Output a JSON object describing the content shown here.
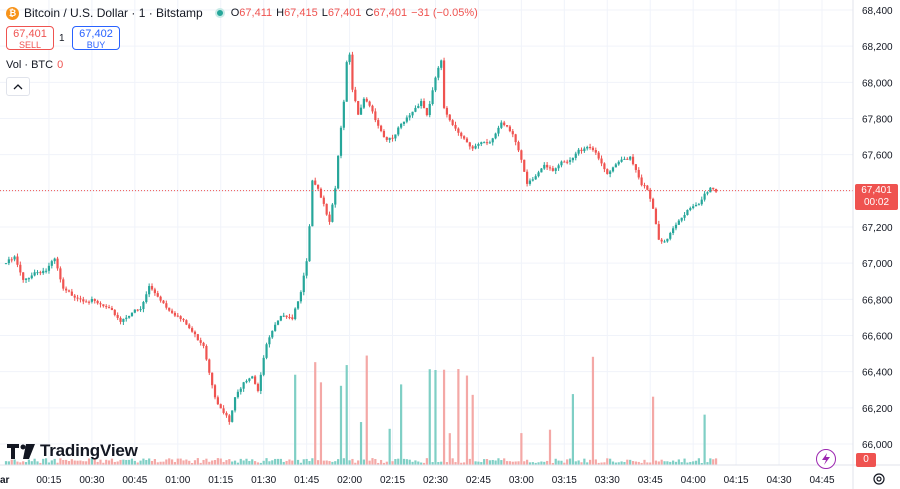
{
  "header": {
    "coin_icon_glyph": "₿",
    "symbol_title": "Bitcoin / U.S. Dollar · 1 · Bitstamp",
    "ohlc": {
      "open_key": "O",
      "open": "67,411",
      "high_key": "H",
      "high": "67,415",
      "low_key": "L",
      "low": "67,401",
      "close_key": "C",
      "close": "67,401",
      "change": "−31 (−0.05%)"
    }
  },
  "trade": {
    "sell_price": "67,401",
    "sell_label": "SELL",
    "spread": "1",
    "buy_price": "67,402",
    "buy_label": "BUY"
  },
  "volume": {
    "label": "Vol · BTC",
    "value": "0",
    "badge": "0"
  },
  "logo_text": "TradingView",
  "price_label": {
    "price": "67,401",
    "countdown": "00:02"
  },
  "colors": {
    "up": "#26a69a",
    "down": "#ef5350",
    "up_volume": "#7fcfc5",
    "down_volume": "#f4a8a6"
  },
  "icons": {
    "coin": "bitcoin-icon",
    "collapse": "chevron-up-icon",
    "logo": "tradingview-logo-icon",
    "bolt": "lightning-icon",
    "settings": "gear-icon"
  },
  "chart_data": {
    "type": "candlestick",
    "timeframe": "1 minute",
    "y_range": [
      65900,
      68450
    ],
    "y_ticks": [
      "68,400",
      "68,200",
      "68,000",
      "67,800",
      "67,600",
      "67,400",
      "67,200",
      "67,000",
      "66,800",
      "66,600",
      "66,400",
      "66,200",
      "66,000"
    ],
    "y_tick_values": [
      68400,
      68200,
      68000,
      67800,
      67600,
      67400,
      67200,
      67000,
      66800,
      66600,
      66400,
      66200,
      66000
    ],
    "x_ticks": [
      "ar",
      "00:15",
      "00:30",
      "00:45",
      "01:00",
      "01:15",
      "01:30",
      "01:45",
      "02:00",
      "02:15",
      "02:30",
      "02:45",
      "03:00",
      "03:15",
      "03:30",
      "03:45",
      "04:00",
      "04:15",
      "04:30",
      "04:45"
    ],
    "x_tick_minutes": [
      0,
      15,
      30,
      45,
      60,
      75,
      90,
      105,
      120,
      135,
      150,
      165,
      180,
      195,
      210,
      225,
      240,
      255,
      270,
      285
    ],
    "last_price_line": 67401,
    "close_path_anchors": [
      [
        0,
        67000
      ],
      [
        3,
        67030
      ],
      [
        6,
        66900
      ],
      [
        10,
        66950
      ],
      [
        14,
        66960
      ],
      [
        17,
        67020
      ],
      [
        20,
        66850
      ],
      [
        24,
        66820
      ],
      [
        27,
        66800
      ],
      [
        30,
        66790
      ],
      [
        34,
        66760
      ],
      [
        38,
        66720
      ],
      [
        40,
        66680
      ],
      [
        44,
        66730
      ],
      [
        47,
        66740
      ],
      [
        50,
        66870
      ],
      [
        53,
        66820
      ],
      [
        56,
        66760
      ],
      [
        59,
        66720
      ],
      [
        63,
        66660
      ],
      [
        66,
        66600
      ],
      [
        69,
        66550
      ],
      [
        71,
        66400
      ],
      [
        73,
        66270
      ],
      [
        75,
        66190
      ],
      [
        77,
        66150
      ],
      [
        78,
        66120
      ],
      [
        80,
        66250
      ],
      [
        83,
        66350
      ],
      [
        86,
        66380
      ],
      [
        88,
        66300
      ],
      [
        91,
        66550
      ],
      [
        94,
        66650
      ],
      [
        97,
        66720
      ],
      [
        100,
        66700
      ],
      [
        103,
        66850
      ],
      [
        105,
        67000
      ],
      [
        106,
        67200
      ],
      [
        107,
        67450
      ],
      [
        109,
        67400
      ],
      [
        111,
        67320
      ],
      [
        113,
        67240
      ],
      [
        115,
        67420
      ],
      [
        116,
        67600
      ],
      [
        118,
        67900
      ],
      [
        119,
        68100
      ],
      [
        120,
        68150
      ],
      [
        121,
        67950
      ],
      [
        123,
        67820
      ],
      [
        125,
        67900
      ],
      [
        127,
        67880
      ],
      [
        129,
        67800
      ],
      [
        132,
        67700
      ],
      [
        135,
        67680
      ],
      [
        137,
        67740
      ],
      [
        139,
        67780
      ],
      [
        142,
        67840
      ],
      [
        145,
        67900
      ],
      [
        147,
        67820
      ],
      [
        149,
        67950
      ],
      [
        151,
        68080
      ],
      [
        152,
        68120
      ],
      [
        153,
        67850
      ],
      [
        155,
        67780
      ],
      [
        157,
        67750
      ],
      [
        160,
        67690
      ],
      [
        163,
        67640
      ],
      [
        166,
        67660
      ],
      [
        169,
        67660
      ],
      [
        171,
        67720
      ],
      [
        173,
        67780
      ],
      [
        175,
        67760
      ],
      [
        177,
        67720
      ],
      [
        179,
        67620
      ],
      [
        181,
        67500
      ],
      [
        182,
        67430
      ],
      [
        185,
        67480
      ],
      [
        188,
        67550
      ],
      [
        191,
        67520
      ],
      [
        194,
        67550
      ],
      [
        197,
        67560
      ],
      [
        200,
        67620
      ],
      [
        203,
        67650
      ],
      [
        206,
        67620
      ],
      [
        208,
        67540
      ],
      [
        210,
        67490
      ],
      [
        212,
        67520
      ],
      [
        215,
        67570
      ],
      [
        218,
        67590
      ],
      [
        220,
        67520
      ],
      [
        222,
        67440
      ],
      [
        224,
        67400
      ],
      [
        226,
        67300
      ],
      [
        228,
        67120
      ],
      [
        230,
        67110
      ],
      [
        233,
        67200
      ],
      [
        236,
        67260
      ],
      [
        239,
        67300
      ],
      [
        242,
        67320
      ],
      [
        244,
        67380
      ],
      [
        246,
        67420
      ],
      [
        248,
        67401
      ]
    ],
    "volume_highlights_minutes": [
      101,
      108,
      110,
      117,
      119,
      124,
      126,
      134,
      138,
      148,
      150,
      153,
      155,
      158,
      161,
      163,
      180,
      190,
      198,
      205,
      226,
      244
    ]
  }
}
